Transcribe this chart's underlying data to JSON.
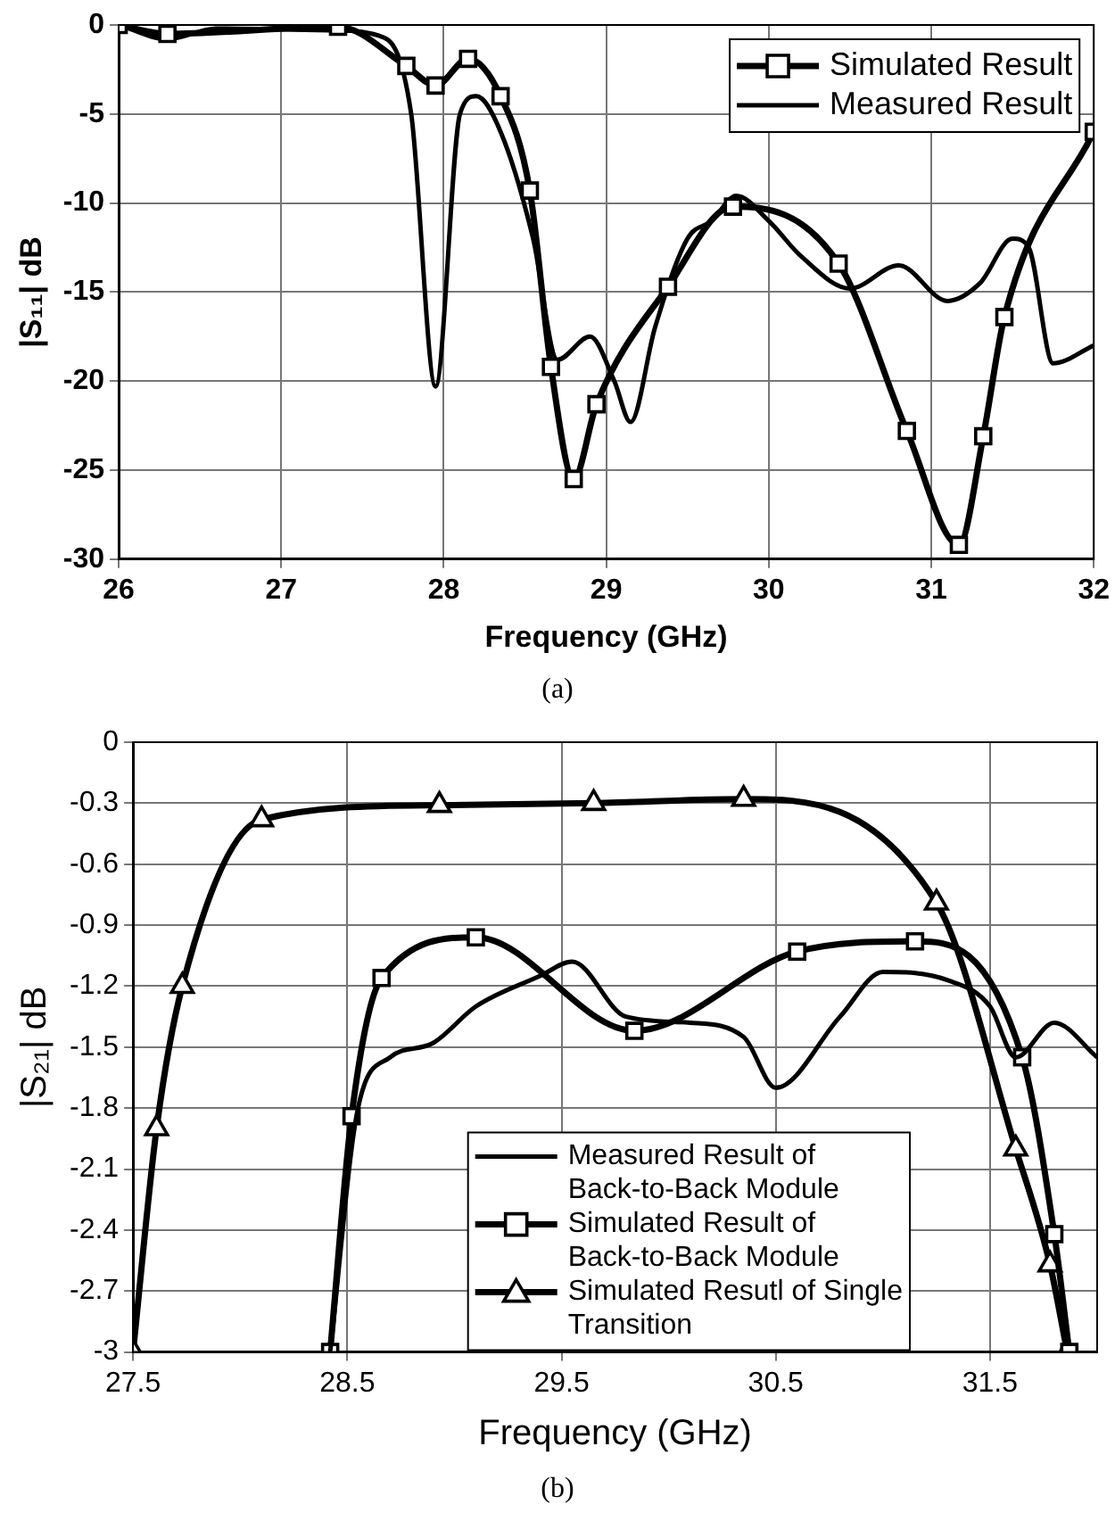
{
  "chart_data": [
    {
      "type": "line",
      "xlabel": "Frequency (GHz)",
      "ylabel": "|S₁₁| dB",
      "xlim": [
        26,
        32
      ],
      "xticks": [
        26,
        27,
        28,
        29,
        30,
        31,
        32
      ],
      "ylim": [
        -30,
        0
      ],
      "yticks": [
        -30,
        -25,
        -20,
        -15,
        -10,
        -5,
        0
      ],
      "grid": true,
      "legend": "top right",
      "annotations": [
        "(a)"
      ],
      "series": [
        {
          "name": "Simulated Result",
          "color": "#000000",
          "marker": "square",
          "x": [
            26,
            26.3,
            27.35,
            27.77,
            27.95,
            28.15,
            28.35,
            28.53,
            28.66,
            28.8,
            28.94,
            29.38,
            29.78,
            30.43,
            30.85,
            31.17,
            31.32,
            31.45,
            32
          ],
          "values": [
            0,
            -0.5,
            -0.1,
            -2.3,
            -3.4,
            -1.9,
            -4,
            -9.3,
            -19.2,
            -25.5,
            -21.3,
            -14.7,
            -10.2,
            -13.4,
            -22.8,
            -29.2,
            -23.1,
            -16.4,
            -6
          ]
        },
        {
          "name": "Measured Result",
          "color": "#000000",
          "marker": "none",
          "x": [
            26,
            26.3,
            26.6,
            27.3,
            27.6,
            27.8,
            27.95,
            28.1,
            28.2,
            28.35,
            28.55,
            28.7,
            28.9,
            29.05,
            29.15,
            29.3,
            29.5,
            29.65,
            29.8,
            30,
            30.2,
            30.5,
            30.8,
            31.1,
            31.3,
            31.5,
            31.6,
            31.75,
            32
          ],
          "values": [
            0,
            -0.8,
            -0.2,
            -0.3,
            -0.6,
            -5,
            -20.3,
            -5,
            -4,
            -6,
            -12,
            -18.8,
            -17.5,
            -20,
            -22.3,
            -17,
            -12,
            -11,
            -9.6,
            -11,
            -13,
            -14.8,
            -13.5,
            -15.5,
            -14.5,
            -12,
            -12.5,
            -19,
            -18
          ]
        }
      ]
    },
    {
      "type": "line",
      "xlabel": "Frequency (GHz)",
      "ylabel": "|S₂₁| dB",
      "xlim": [
        27.5,
        32
      ],
      "xticks": [
        27.5,
        28.5,
        29.5,
        30.5,
        31.5
      ],
      "ylim": [
        -3,
        0
      ],
      "yticks": [
        -3,
        -2.7,
        -2.4,
        -2.1,
        -1.8,
        -1.5,
        -1.2,
        -0.9,
        -0.6,
        -0.3,
        0
      ],
      "grid": true,
      "legend": "bottom right",
      "annotations": [
        "(b)"
      ],
      "series": [
        {
          "name": "Measured Result of Back-to-Back Module",
          "color": "#000000",
          "marker": "none",
          "x": [
            28.42,
            28.55,
            28.7,
            28.9,
            29.1,
            29.4,
            29.55,
            29.8,
            30.1,
            30.35,
            30.5,
            30.8,
            31,
            31.3,
            31.5,
            31.62,
            31.8,
            32
          ],
          "values": [
            -3,
            -1.8,
            -1.55,
            -1.48,
            -1.3,
            -1.15,
            -1.08,
            -1.35,
            -1.38,
            -1.45,
            -1.7,
            -1.35,
            -1.13,
            -1.17,
            -1.3,
            -1.55,
            -1.38,
            -1.55
          ]
        },
        {
          "name": "Simulated Result of Back-to-Back Module",
          "color": "#000000",
          "marker": "square",
          "x": [
            28.42,
            28.52,
            28.66,
            29.1,
            29.84,
            30.6,
            31.15,
            31.65,
            31.8,
            31.87
          ],
          "values": [
            -3,
            -1.84,
            -1.16,
            -0.96,
            -1.42,
            -1.03,
            -0.98,
            -1.55,
            -2.42,
            -3
          ]
        },
        {
          "name": "Simulated Resutl of Single Transition",
          "color": "#000000",
          "marker": "triangle",
          "x": [
            27.5,
            27.61,
            27.73,
            28.1,
            28.93,
            29.65,
            30.35,
            31.25,
            31.62,
            31.78,
            31.86
          ],
          "values": [
            -3,
            -1.9,
            -1.2,
            -0.38,
            -0.31,
            -0.3,
            -0.28,
            -0.79,
            -2,
            -2.57,
            -3
          ]
        }
      ]
    }
  ]
}
